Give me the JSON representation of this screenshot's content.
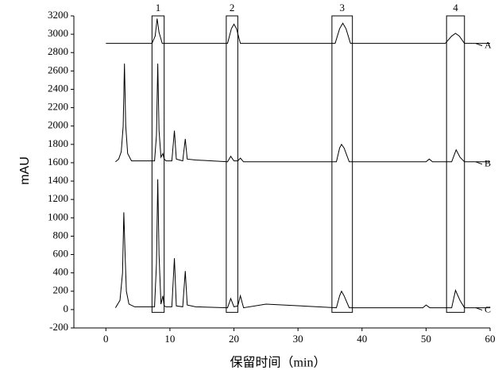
{
  "chart_data": {
    "type": "line",
    "x_label": "保留时间（min）",
    "y_label": "mAU",
    "xlim": [
      -5,
      60
    ],
    "xticks": [
      0,
      10,
      20,
      30,
      40,
      50,
      60
    ],
    "ylim": [
      -200,
      3200
    ],
    "yticks": [
      -200,
      0,
      200,
      400,
      600,
      800,
      1000,
      1200,
      1400,
      1600,
      1800,
      2000,
      2200,
      2400,
      2600,
      2800,
      3000,
      3200
    ],
    "series": [
      {
        "name": "A",
        "color": "#000000",
        "x": [
          0,
          7.2,
          7.7,
          8,
          8.3,
          8.8,
          19,
          19.6,
          20,
          20.4,
          21,
          35.8,
          36.5,
          37,
          37.5,
          38.2,
          53,
          54,
          54.6,
          55.2,
          56,
          60
        ],
        "values": [
          2900,
          2900,
          2980,
          3170,
          3020,
          2900,
          2900,
          3060,
          3110,
          3060,
          2900,
          2900,
          3060,
          3120,
          3060,
          2900,
          2900,
          2980,
          3010,
          2980,
          2900,
          2900
        ]
      },
      {
        "name": "B",
        "color": "#000000",
        "x": [
          1.5,
          2,
          2.4,
          2.7,
          2.9,
          3.1,
          3.4,
          4,
          7.6,
          7.9,
          8.1,
          8.3,
          8.6,
          8.9,
          9.1,
          9.4,
          10.3,
          10.7,
          11,
          12,
          12.4,
          12.7,
          14,
          19,
          19.5,
          20,
          20.6,
          21,
          21.5,
          25,
          36,
          36.5,
          36.8,
          37.2,
          38,
          50,
          50.5,
          51,
          54,
          54.7,
          55.3,
          56,
          60
        ],
        "values": [
          1610,
          1640,
          1720,
          2000,
          2680,
          2000,
          1700,
          1620,
          1620,
          1900,
          2680,
          1950,
          1660,
          1700,
          1640,
          1620,
          1620,
          1950,
          1640,
          1620,
          1860,
          1640,
          1630,
          1610,
          1670,
          1620,
          1620,
          1650,
          1610,
          1610,
          1610,
          1760,
          1800,
          1760,
          1610,
          1610,
          1640,
          1610,
          1610,
          1740,
          1660,
          1610,
          1610
        ]
      },
      {
        "name": "C",
        "color": "#000000",
        "x": [
          1.5,
          2.2,
          2.6,
          2.8,
          3,
          3.2,
          3.6,
          4.5,
          7.6,
          7.9,
          8.1,
          8.3,
          8.6,
          8.9,
          9.1,
          9.4,
          10.3,
          10.7,
          11,
          12,
          12.4,
          12.7,
          14,
          19,
          19.5,
          20,
          20.6,
          21,
          21.5,
          25,
          36,
          36.5,
          36.8,
          37.2,
          38,
          49.5,
          50,
          50.6,
          54,
          54.6,
          55.3,
          56,
          60
        ],
        "values": [
          20,
          100,
          400,
          1060,
          600,
          200,
          60,
          30,
          30,
          500,
          1420,
          600,
          60,
          150,
          40,
          30,
          30,
          560,
          40,
          30,
          420,
          50,
          30,
          20,
          120,
          30,
          40,
          150,
          20,
          60,
          20,
          150,
          200,
          150,
          20,
          20,
          50,
          20,
          20,
          210,
          100,
          20,
          20
        ]
      }
    ],
    "boxes": [
      {
        "label": "1",
        "x": [
          7.2,
          9.1
        ],
        "y": [
          -30,
          3200
        ]
      },
      {
        "label": "2",
        "x": [
          18.8,
          20.6
        ],
        "y": [
          -30,
          3200
        ]
      },
      {
        "label": "3",
        "x": [
          35.3,
          38.5
        ],
        "y": [
          -30,
          3200
        ]
      },
      {
        "label": "4",
        "x": [
          53.2,
          56
        ],
        "y": [
          -30,
          3200
        ]
      }
    ]
  }
}
